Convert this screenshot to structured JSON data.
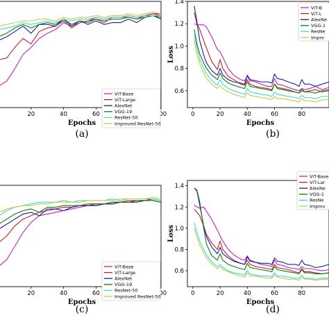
{
  "colors": {
    "ViT-Base": "#c020c0",
    "ViT-Large": "#c02020",
    "AlexNet": "#1a1aa0",
    "VGG-19": "#0a7a0a",
    "ResNet-50": "#40d8d8",
    "Improved ResNet-50": "#c8c840"
  },
  "chart_data": [
    {
      "panel": "(a)",
      "type": "line",
      "xlabel": "Epochs",
      "ylabel": "",
      "xticks": [
        20,
        40,
        60,
        80,
        100
      ],
      "yticks": [],
      "xlim": [
        0,
        100
      ],
      "ylim": [
        0.4,
        1.0
      ],
      "legend_position": "lower-right",
      "legend": [
        "ViT-Base",
        "ViT-Large",
        "AlexNet",
        "VGG-19",
        "ResNet-50",
        "Improved ResNet-50"
      ],
      "x": [
        0,
        5,
        10,
        15,
        20,
        25,
        30,
        35,
        40,
        45,
        50,
        55,
        60,
        65,
        70,
        75,
        80,
        85,
        90,
        95,
        100
      ],
      "series": [
        {
          "name": "ViT-Base",
          "values": [
            0.52,
            0.55,
            0.62,
            0.7,
            0.74,
            0.79,
            0.82,
            0.84,
            0.88,
            0.86,
            0.88,
            0.89,
            0.91,
            0.9,
            0.91,
            0.91,
            0.92,
            0.91,
            0.92,
            0.93,
            0.92
          ]
        },
        {
          "name": "ViT-Large",
          "values": [
            0.67,
            0.68,
            0.74,
            0.79,
            0.76,
            0.83,
            0.85,
            0.86,
            0.89,
            0.85,
            0.88,
            0.89,
            0.9,
            0.88,
            0.91,
            0.91,
            0.91,
            0.9,
            0.92,
            0.93,
            0.93
          ]
        },
        {
          "name": "AlexNet",
          "values": [
            0.78,
            0.8,
            0.83,
            0.86,
            0.82,
            0.87,
            0.87,
            0.86,
            0.9,
            0.86,
            0.89,
            0.87,
            0.89,
            0.87,
            0.88,
            0.88,
            0.9,
            0.88,
            0.91,
            0.92,
            0.9
          ]
        },
        {
          "name": "VGG-19",
          "values": [
            0.8,
            0.82,
            0.85,
            0.87,
            0.85,
            0.87,
            0.88,
            0.87,
            0.9,
            0.87,
            0.89,
            0.88,
            0.9,
            0.89,
            0.9,
            0.9,
            0.91,
            0.9,
            0.91,
            0.92,
            0.91
          ]
        },
        {
          "name": "ResNet-50",
          "values": [
            0.84,
            0.85,
            0.86,
            0.88,
            0.87,
            0.88,
            0.89,
            0.88,
            0.9,
            0.89,
            0.9,
            0.9,
            0.91,
            0.9,
            0.91,
            0.91,
            0.92,
            0.91,
            0.92,
            0.92,
            0.92
          ]
        },
        {
          "name": "Improved ResNet-50",
          "values": [
            0.86,
            0.87,
            0.88,
            0.89,
            0.89,
            0.9,
            0.9,
            0.89,
            0.91,
            0.9,
            0.91,
            0.91,
            0.92,
            0.91,
            0.92,
            0.92,
            0.93,
            0.92,
            0.93,
            0.94,
            0.93
          ]
        }
      ]
    },
    {
      "panel": "(b)",
      "type": "line",
      "xlabel": "Epochs",
      "ylabel": "Loss",
      "xticks": [
        0,
        20,
        40,
        60,
        80
      ],
      "yticks": [
        0.6,
        0.8,
        1.0,
        1.2,
        1.4
      ],
      "xlim": [
        -4,
        100
      ],
      "ylim": [
        0.45,
        1.4
      ],
      "legend_position": "top-right",
      "legend": [
        "ViT-B",
        "ViT-L",
        "AlexNe",
        "VGG-1",
        "ResNe",
        "Impro"
      ],
      "x": [
        1,
        3,
        5,
        8,
        10,
        14,
        18,
        20,
        22,
        26,
        30,
        35,
        38,
        40,
        42,
        46,
        50,
        55,
        58,
        60,
        62,
        66,
        70,
        75,
        78,
        80,
        82,
        86,
        90,
        95,
        100
      ],
      "series": [
        {
          "name": "ViT-Base",
          "values": [
            1.2,
            1.19,
            1.19,
            1.19,
            1.17,
            1.08,
            0.97,
            0.95,
            0.9,
            0.8,
            0.74,
            0.7,
            0.69,
            0.73,
            0.69,
            0.68,
            0.66,
            0.64,
            0.64,
            0.71,
            0.66,
            0.65,
            0.63,
            0.61,
            0.6,
            0.62,
            0.61,
            0.62,
            0.64,
            0.61,
            0.63
          ]
        },
        {
          "name": "ViT-Large",
          "values": [
            1.3,
            1.2,
            1.15,
            1.05,
            0.98,
            0.86,
            0.79,
            0.88,
            0.8,
            0.73,
            0.7,
            0.66,
            0.65,
            0.7,
            0.66,
            0.64,
            0.63,
            0.62,
            0.61,
            0.66,
            0.63,
            0.62,
            0.61,
            0.59,
            0.58,
            0.6,
            0.59,
            0.6,
            0.61,
            0.59,
            0.6
          ]
        },
        {
          "name": "AlexNet",
          "values": [
            1.36,
            1.22,
            1.05,
            0.92,
            0.85,
            0.78,
            0.74,
            0.8,
            0.74,
            0.7,
            0.68,
            0.67,
            0.66,
            0.74,
            0.7,
            0.69,
            0.68,
            0.68,
            0.67,
            0.75,
            0.71,
            0.7,
            0.68,
            0.66,
            0.64,
            0.7,
            0.66,
            0.66,
            0.64,
            0.66,
            0.68
          ]
        },
        {
          "name": "VGG-19",
          "values": [
            1.15,
            1.02,
            0.93,
            0.85,
            0.8,
            0.74,
            0.7,
            0.76,
            0.71,
            0.67,
            0.65,
            0.63,
            0.62,
            0.68,
            0.64,
            0.63,
            0.62,
            0.61,
            0.6,
            0.66,
            0.62,
            0.61,
            0.6,
            0.59,
            0.58,
            0.62,
            0.59,
            0.59,
            0.58,
            0.6,
            0.61
          ]
        },
        {
          "name": "ResNet-50",
          "values": [
            1.1,
            0.98,
            0.88,
            0.8,
            0.75,
            0.69,
            0.65,
            0.7,
            0.66,
            0.62,
            0.6,
            0.58,
            0.57,
            0.62,
            0.59,
            0.58,
            0.57,
            0.56,
            0.55,
            0.59,
            0.57,
            0.56,
            0.55,
            0.54,
            0.53,
            0.56,
            0.54,
            0.54,
            0.53,
            0.55,
            0.55
          ]
        },
        {
          "name": "Improved ResNet-50",
          "values": [
            1.05,
            0.93,
            0.84,
            0.76,
            0.71,
            0.66,
            0.62,
            0.65,
            0.62,
            0.59,
            0.57,
            0.55,
            0.54,
            0.58,
            0.56,
            0.55,
            0.54,
            0.53,
            0.52,
            0.55,
            0.53,
            0.53,
            0.52,
            0.51,
            0.5,
            0.53,
            0.51,
            0.51,
            0.5,
            0.52,
            0.52
          ]
        }
      ]
    },
    {
      "panel": "(c)",
      "type": "line",
      "xlabel": "Epochs",
      "ylabel": "",
      "xticks": [
        20,
        40,
        60,
        80,
        100
      ],
      "yticks": [],
      "xlim": [
        0,
        100
      ],
      "ylim": [
        0.4,
        1.0
      ],
      "legend_position": "lower-right",
      "legend": [
        "ViT-Base",
        "ViT-Large",
        "AlexNet",
        "VGG-19",
        "ResNet-50",
        "Improved ResNet-50"
      ],
      "x": [
        0,
        5,
        10,
        15,
        20,
        25,
        30,
        35,
        40,
        45,
        50,
        55,
        60,
        65,
        70,
        75,
        80,
        85,
        90,
        95,
        100
      ],
      "series": [
        {
          "name": "ViT-Base",
          "values": [
            0.52,
            0.56,
            0.64,
            0.72,
            0.78,
            0.82,
            0.83,
            0.84,
            0.85,
            0.86,
            0.87,
            0.88,
            0.88,
            0.89,
            0.89,
            0.9,
            0.9,
            0.91,
            0.91,
            0.92,
            0.91
          ]
        },
        {
          "name": "ViT-Large",
          "values": [
            0.66,
            0.7,
            0.76,
            0.8,
            0.82,
            0.84,
            0.85,
            0.86,
            0.87,
            0.87,
            0.88,
            0.88,
            0.89,
            0.89,
            0.9,
            0.9,
            0.91,
            0.91,
            0.91,
            0.92,
            0.91
          ]
        },
        {
          "name": "AlexNet",
          "values": [
            0.74,
            0.77,
            0.8,
            0.83,
            0.84,
            0.82,
            0.86,
            0.86,
            0.85,
            0.87,
            0.88,
            0.88,
            0.88,
            0.89,
            0.89,
            0.9,
            0.9,
            0.9,
            0.91,
            0.91,
            0.9
          ]
        },
        {
          "name": "VGG-19",
          "values": [
            0.77,
            0.8,
            0.83,
            0.85,
            0.86,
            0.84,
            0.87,
            0.87,
            0.88,
            0.88,
            0.88,
            0.89,
            0.89,
            0.89,
            0.9,
            0.9,
            0.9,
            0.91,
            0.91,
            0.91,
            0.9
          ]
        },
        {
          "name": "ResNet-50",
          "values": [
            0.82,
            0.85,
            0.87,
            0.88,
            0.89,
            0.9,
            0.9,
            0.9,
            0.91,
            0.9,
            0.91,
            0.91,
            0.91,
            0.91,
            0.92,
            0.91,
            0.92,
            0.92,
            0.92,
            0.92,
            0.91
          ]
        },
        {
          "name": "Improved ResNet-50",
          "values": [
            0.84,
            0.86,
            0.87,
            0.88,
            0.88,
            0.89,
            0.89,
            0.9,
            0.9,
            0.9,
            0.9,
            0.91,
            0.91,
            0.91,
            0.91,
            0.92,
            0.92,
            0.92,
            0.92,
            0.93,
            0.92
          ]
        }
      ]
    },
    {
      "panel": "(d)",
      "type": "line",
      "xlabel": "Epochs",
      "ylabel": "Loss",
      "xticks": [
        0,
        20,
        40,
        60,
        80
      ],
      "yticks": [
        0.6,
        0.8,
        1.0,
        1.2,
        1.4
      ],
      "xlim": [
        -4,
        100
      ],
      "ylim": [
        0.45,
        1.45
      ],
      "legend_position": "top-right",
      "legend": [
        "ViT-Base",
        "ViT-Lar",
        "AlexNe",
        "VGG-1",
        "ResNe",
        "Improv"
      ],
      "x": [
        1,
        3,
        5,
        8,
        10,
        14,
        18,
        20,
        22,
        26,
        30,
        35,
        38,
        40,
        42,
        46,
        50,
        55,
        58,
        60,
        62,
        66,
        70,
        75,
        78,
        80,
        82,
        86,
        90,
        95,
        100
      ],
      "series": [
        {
          "name": "ViT-Base",
          "values": [
            1.22,
            1.2,
            1.19,
            1.2,
            1.16,
            1.08,
            0.98,
            0.93,
            0.88,
            0.8,
            0.75,
            0.71,
            0.7,
            0.74,
            0.7,
            0.68,
            0.66,
            0.65,
            0.64,
            0.7,
            0.66,
            0.65,
            0.63,
            0.62,
            0.61,
            0.64,
            0.62,
            0.62,
            0.61,
            0.6,
            0.61
          ]
        },
        {
          "name": "ViT-Large",
          "values": [
            1.18,
            1.15,
            1.12,
            1.02,
            0.94,
            0.86,
            0.8,
            0.88,
            0.8,
            0.74,
            0.7,
            0.67,
            0.66,
            0.7,
            0.66,
            0.64,
            0.63,
            0.62,
            0.61,
            0.66,
            0.63,
            0.62,
            0.61,
            0.59,
            0.58,
            0.62,
            0.59,
            0.59,
            0.58,
            0.57,
            0.58
          ]
        },
        {
          "name": "AlexNet",
          "values": [
            1.38,
            1.35,
            1.22,
            1.02,
            0.92,
            0.82,
            0.76,
            0.82,
            0.76,
            0.72,
            0.69,
            0.67,
            0.66,
            0.73,
            0.69,
            0.68,
            0.67,
            0.67,
            0.66,
            0.72,
            0.69,
            0.68,
            0.66,
            0.66,
            0.65,
            0.7,
            0.66,
            0.65,
            0.63,
            0.64,
            0.66
          ]
        },
        {
          "name": "VGG-19",
          "values": [
            1.38,
            1.36,
            1.25,
            1.0,
            0.85,
            0.74,
            0.7,
            0.76,
            0.7,
            0.66,
            0.64,
            0.62,
            0.61,
            0.67,
            0.63,
            0.62,
            0.61,
            0.6,
            0.59,
            0.64,
            0.61,
            0.6,
            0.59,
            0.58,
            0.57,
            0.61,
            0.58,
            0.58,
            0.57,
            0.57,
            0.58
          ]
        },
        {
          "name": "ResNet-50",
          "values": [
            1.05,
            0.96,
            0.88,
            0.8,
            0.75,
            0.68,
            0.64,
            0.66,
            0.63,
            0.6,
            0.58,
            0.57,
            0.56,
            0.6,
            0.57,
            0.56,
            0.55,
            0.55,
            0.54,
            0.58,
            0.55,
            0.55,
            0.54,
            0.53,
            0.53,
            0.56,
            0.53,
            0.53,
            0.52,
            0.53,
            0.53
          ]
        },
        {
          "name": "Improved ResNet-50",
          "values": [
            1.0,
            0.92,
            0.84,
            0.77,
            0.72,
            0.66,
            0.62,
            0.64,
            0.61,
            0.59,
            0.57,
            0.55,
            0.54,
            0.58,
            0.55,
            0.55,
            0.54,
            0.53,
            0.53,
            0.56,
            0.54,
            0.53,
            0.52,
            0.52,
            0.51,
            0.54,
            0.52,
            0.52,
            0.51,
            0.52,
            0.52
          ]
        }
      ]
    }
  ]
}
